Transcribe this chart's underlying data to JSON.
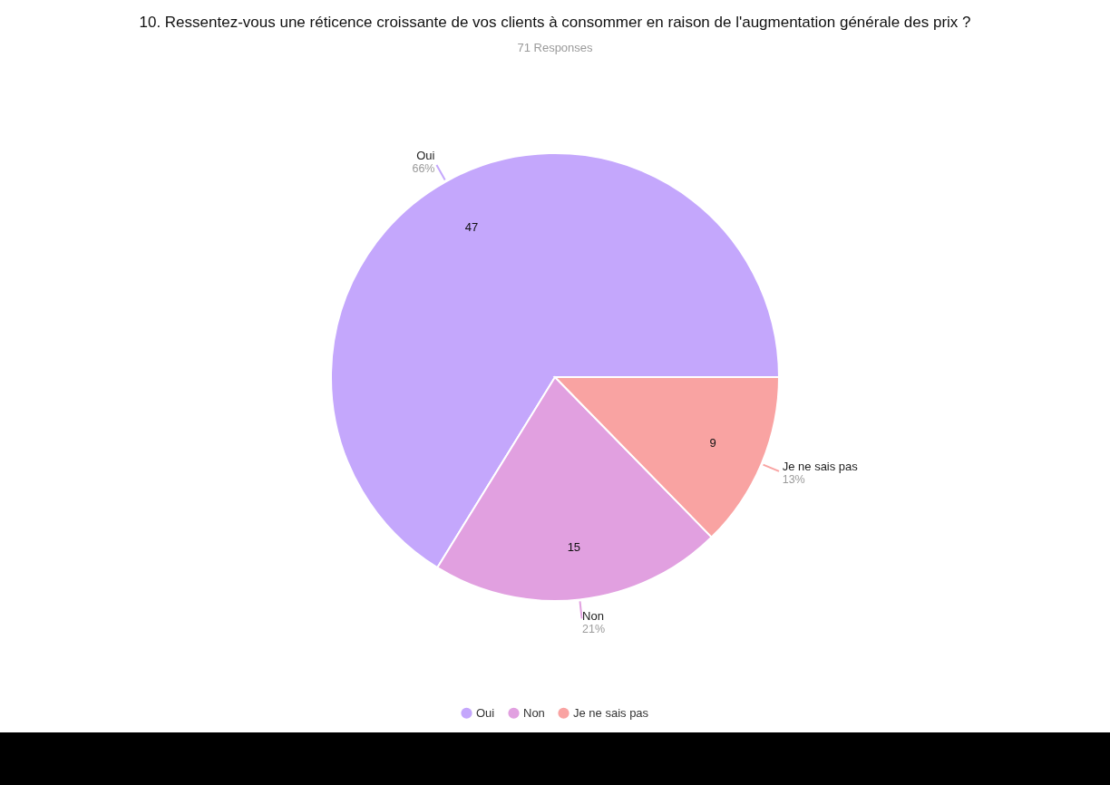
{
  "chart_data": {
    "type": "pie",
    "title": "10. Ressentez-vous une réticence croissante de vos clients à consommer en raison de l'augmentation générale des prix ?",
    "subtitle": "71 Responses",
    "categories": [
      "Oui",
      "Non",
      "Je ne sais pas"
    ],
    "values": [
      47,
      15,
      9
    ],
    "colors": [
      "#c4a7fc",
      "#e1a0e0",
      "#f9a3a2"
    ],
    "data_labels": true,
    "legend": "bottom",
    "annotations": [
      "66%",
      "21%",
      "13%"
    ]
  }
}
